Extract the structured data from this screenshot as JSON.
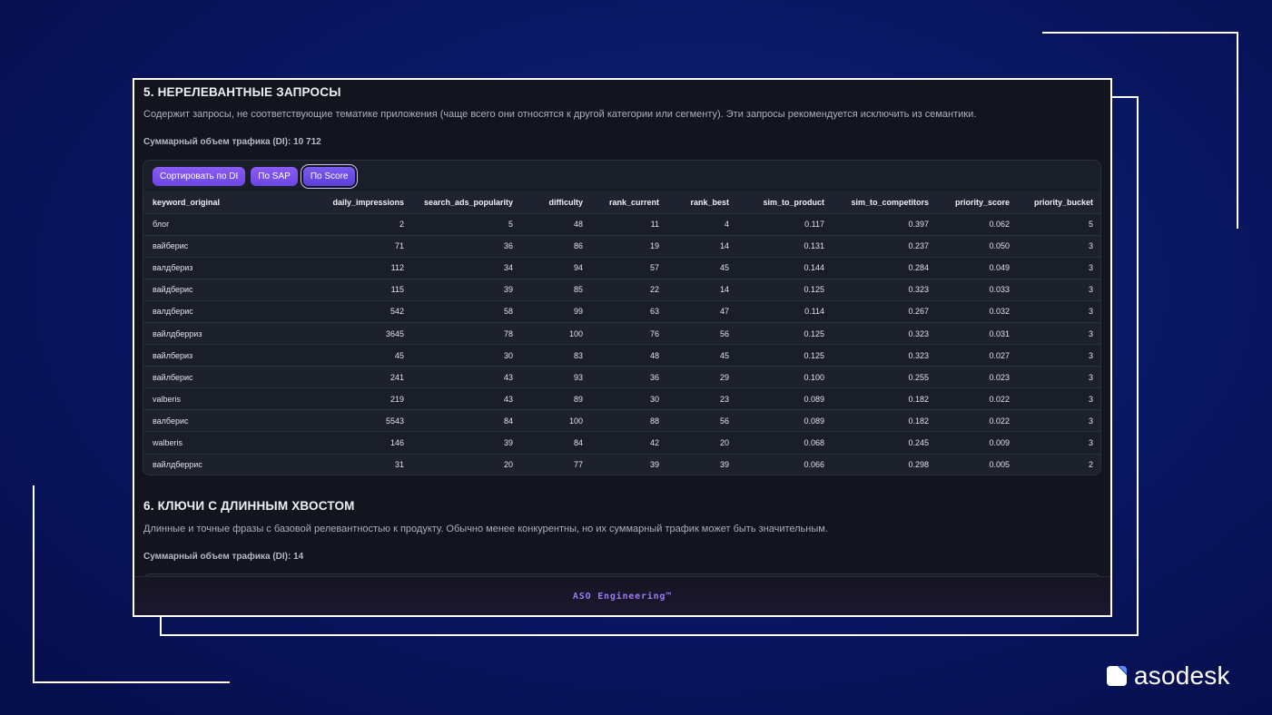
{
  "section5": {
    "title": "5. НЕРЕЛЕВАНТНЫЕ ЗАПРОСЫ",
    "description": "Содержит запросы, не соответствующие тематике приложения (чаще всего они относятся к другой категории или сегменту). Эти запросы рекомендуется исключить из семантики.",
    "total": "Суммарный объем трафика (DI): 10 712",
    "buttons": {
      "sort_di": "Сортировать по DI",
      "sort_sap": "По SAP",
      "sort_score": "По Score"
    },
    "columns": [
      "keyword_original",
      "daily_impressions",
      "search_ads_popularity",
      "difficulty",
      "rank_current",
      "rank_best",
      "sim_to_product",
      "sim_to_competitors",
      "priority_score",
      "priority_bucket"
    ],
    "rows": [
      [
        "блог",
        "2",
        "5",
        "48",
        "11",
        "4",
        "0.117",
        "0.397",
        "0.062",
        "5"
      ],
      [
        "вайберис",
        "71",
        "36",
        "86",
        "19",
        "14",
        "0.131",
        "0.237",
        "0.050",
        "3"
      ],
      [
        "валдбериз",
        "112",
        "34",
        "94",
        "57",
        "45",
        "0.144",
        "0.284",
        "0.049",
        "3"
      ],
      [
        "вайдберис",
        "115",
        "39",
        "85",
        "22",
        "14",
        "0.125",
        "0.323",
        "0.033",
        "3"
      ],
      [
        "валдберис",
        "542",
        "58",
        "99",
        "63",
        "47",
        "0.114",
        "0.267",
        "0.032",
        "3"
      ],
      [
        "вайлдберриз",
        "3645",
        "78",
        "100",
        "76",
        "56",
        "0.125",
        "0.323",
        "0.031",
        "3"
      ],
      [
        "вайлбериз",
        "45",
        "30",
        "83",
        "48",
        "45",
        "0.125",
        "0.323",
        "0.027",
        "3"
      ],
      [
        "вайлберис",
        "241",
        "43",
        "93",
        "36",
        "29",
        "0.100",
        "0.255",
        "0.023",
        "3"
      ],
      [
        "valberis",
        "219",
        "43",
        "89",
        "30",
        "23",
        "0.089",
        "0.182",
        "0.022",
        "3"
      ],
      [
        "валберис",
        "5543",
        "84",
        "100",
        "88",
        "56",
        "0.089",
        "0.182",
        "0.022",
        "3"
      ],
      [
        "walberis",
        "146",
        "39",
        "84",
        "42",
        "20",
        "0.068",
        "0.245",
        "0.009",
        "3"
      ],
      [
        "вайлдберрис",
        "31",
        "20",
        "77",
        "39",
        "39",
        "0.066",
        "0.298",
        "0.005",
        "2"
      ]
    ]
  },
  "section6": {
    "title": "6. КЛЮЧИ С ДЛИННЫМ ХВОСТОМ",
    "description": "Длинные и точные фразы с базовой релевантностью к продукту. Обычно менее конкурентны, но их суммарный трафик может быть значительным.",
    "total": "Суммарный объем трафика (DI): 14"
  },
  "footer": {
    "text": "ASO Engineering™"
  },
  "brand": {
    "name": "asodesk"
  },
  "colors": {
    "accent": "#7b55ee",
    "footer_text": "#9b7cf0",
    "background": "#0a1a6a",
    "panel": "#12151d"
  },
  "icons": {
    "brand_mark": "asodesk-logo-icon"
  }
}
